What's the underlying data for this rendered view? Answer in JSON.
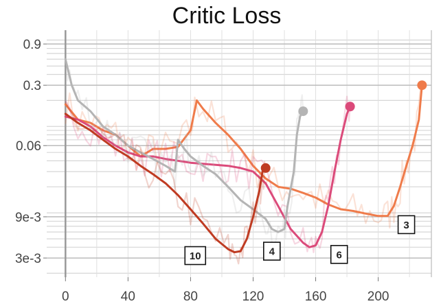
{
  "chart_data": {
    "type": "line",
    "title": "Critic Loss",
    "xlabel": "",
    "ylabel": "",
    "x_scale": "linear",
    "y_scale": "log",
    "xlim": [
      -12,
      234
    ],
    "ylim": [
      0.0018,
      1.3
    ],
    "x_ticks": [
      0,
      40,
      80,
      120,
      160,
      200
    ],
    "x_tick_labels": [
      "0",
      "40",
      "80",
      "120",
      "160",
      "200"
    ],
    "y_ticks": [
      0.003,
      0.009,
      0.06,
      0.3,
      0.9
    ],
    "y_tick_labels": [
      "3e-3",
      "9e-3",
      "0.06",
      "0.3",
      "0.9"
    ],
    "grid": true,
    "legend": "none",
    "series": [
      {
        "name": "3",
        "color": "#ef7b4a",
        "end_marker": true,
        "x": [
          0,
          8,
          16,
          24,
          32,
          40,
          48,
          56,
          64,
          72,
          80,
          84,
          88,
          96,
          104,
          112,
          120,
          128,
          136,
          144,
          152,
          160,
          168,
          176,
          184,
          192,
          200,
          206,
          210,
          214,
          218,
          222,
          226,
          228
        ],
        "y": [
          0.18,
          0.12,
          0.11,
          0.09,
          0.08,
          0.06,
          0.045,
          0.055,
          0.055,
          0.058,
          0.09,
          0.2,
          0.16,
          0.11,
          0.08,
          0.055,
          0.035,
          0.025,
          0.02,
          0.019,
          0.017,
          0.015,
          0.0125,
          0.011,
          0.0105,
          0.0098,
          0.0092,
          0.0092,
          0.012,
          0.02,
          0.035,
          0.06,
          0.12,
          0.3
        ]
      },
      {
        "name": "6",
        "color": "#db4a7a",
        "end_marker": true,
        "x": [
          0,
          8,
          16,
          24,
          32,
          40,
          48,
          56,
          64,
          72,
          80,
          88,
          96,
          104,
          112,
          120,
          128,
          136,
          144,
          152,
          156,
          160,
          164,
          168,
          172,
          176,
          180,
          182
        ],
        "y": [
          0.13,
          0.12,
          0.1,
          0.075,
          0.06,
          0.05,
          0.045,
          0.045,
          0.042,
          0.04,
          0.038,
          0.037,
          0.036,
          0.035,
          0.033,
          0.03,
          0.022,
          0.012,
          0.0065,
          0.0045,
          0.004,
          0.0042,
          0.006,
          0.012,
          0.03,
          0.07,
          0.14,
          0.17
        ]
      },
      {
        "name": "4",
        "color": "#b4b4b4",
        "end_marker": true,
        "x": [
          0,
          4,
          8,
          16,
          24,
          32,
          40,
          48,
          56,
          64,
          70,
          72,
          76,
          80,
          88,
          96,
          104,
          112,
          120,
          128,
          132,
          136,
          140,
          142,
          146,
          148,
          150,
          152
        ],
        "y": [
          0.6,
          0.3,
          0.2,
          0.15,
          0.1,
          0.08,
          0.06,
          0.05,
          0.042,
          0.035,
          0.03,
          0.07,
          0.055,
          0.045,
          0.035,
          0.028,
          0.02,
          0.014,
          0.011,
          0.0085,
          0.0065,
          0.006,
          0.0065,
          0.012,
          0.03,
          0.08,
          0.13,
          0.15
        ]
      },
      {
        "name": "10",
        "color": "#bf3b22",
        "end_marker": true,
        "x": [
          0,
          8,
          16,
          24,
          32,
          40,
          48,
          56,
          64,
          72,
          80,
          88,
          96,
          104,
          108,
          112,
          116,
          120,
          124,
          126,
          128
        ],
        "y": [
          0.14,
          0.11,
          0.09,
          0.07,
          0.055,
          0.045,
          0.035,
          0.028,
          0.022,
          0.016,
          0.011,
          0.0075,
          0.005,
          0.0038,
          0.0035,
          0.0036,
          0.005,
          0.009,
          0.018,
          0.03,
          0.033
        ]
      }
    ],
    "annotations": [
      {
        "text": "10",
        "x": 83,
        "y": 0.0032
      },
      {
        "text": "4",
        "x": 132,
        "y": 0.0036
      },
      {
        "text": "6",
        "x": 175,
        "y": 0.0033
      },
      {
        "text": "3",
        "x": 218,
        "y": 0.0073
      }
    ]
  }
}
